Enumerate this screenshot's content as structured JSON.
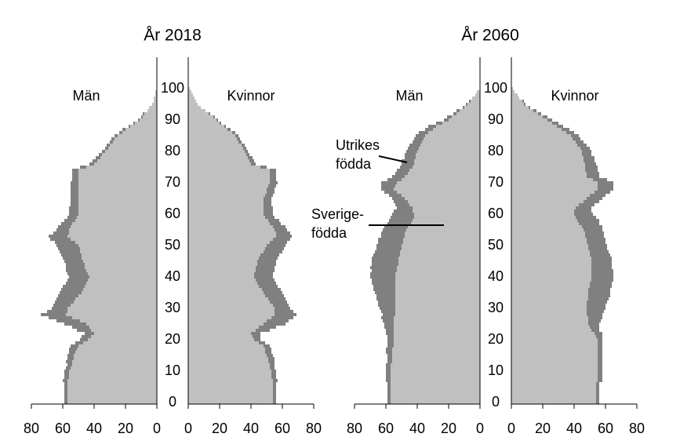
{
  "chart_data": [
    {
      "type": "pyramid",
      "title": "År 2018",
      "ages": [
        0,
        1,
        2,
        3,
        4,
        5,
        6,
        7,
        8,
        9,
        10,
        11,
        12,
        13,
        14,
        15,
        16,
        17,
        18,
        19,
        20,
        21,
        22,
        23,
        24,
        25,
        26,
        27,
        28,
        29,
        30,
        31,
        32,
        33,
        34,
        35,
        36,
        37,
        38,
        39,
        40,
        41,
        42,
        43,
        44,
        45,
        46,
        47,
        48,
        49,
        50,
        51,
        52,
        53,
        54,
        55,
        56,
        57,
        58,
        59,
        60,
        61,
        62,
        63,
        64,
        65,
        66,
        67,
        68,
        69,
        70,
        71,
        72,
        73,
        74,
        75,
        76,
        77,
        78,
        79,
        80,
        81,
        82,
        83,
        84,
        85,
        86,
        87,
        88,
        89,
        90,
        91,
        92,
        93,
        94,
        95,
        96,
        97,
        98,
        99,
        100
      ],
      "ylim": [
        -0.5,
        100.5
      ],
      "yticks": [
        0,
        10,
        20,
        30,
        40,
        50,
        60,
        70,
        80,
        90,
        100
      ],
      "xlim": [
        0,
        80
      ],
      "xticks": [
        0,
        20,
        40,
        60,
        80
      ],
      "men": {
        "label": "Män",
        "series": [
          {
            "color": "#c0c0c0",
            "values": [
              57,
              57,
              57,
              57,
              57,
              57,
              57,
              57,
              56,
              56,
              56,
              55,
              54,
              54,
              53,
              53,
              52,
              51,
              50,
              47,
              44,
              42,
              40,
              42,
              43,
              45,
              49,
              54,
              58,
              57,
              57,
              55,
              53,
              52,
              50,
              48,
              47,
              46,
              45,
              44,
              43,
              44,
              45,
              46,
              46,
              47,
              48,
              48,
              49,
              49,
              50,
              52,
              55,
              57,
              56,
              56,
              55,
              54,
              52,
              51,
              50,
              50,
              50,
              50,
              50,
              50,
              50,
              50,
              50,
              50,
              50,
              50,
              50,
              50,
              50,
              45,
              40,
              38,
              36,
              35,
              33,
              31,
              30,
              28,
              27,
              25,
              22,
              20,
              17,
              14,
              11,
              9,
              8,
              6,
              5,
              3,
              2,
              2,
              1,
              1,
              0
            ]
          },
          {
            "color": "#808080",
            "values": [
              2,
              2,
              2,
              2,
              2,
              2,
              2,
              3,
              3,
              3,
              3,
              3,
              3,
              4,
              4,
              4,
              4,
              5,
              5,
              5,
              5,
              6,
              6,
              9,
              11,
              14,
              15,
              15,
              16,
              13,
              10,
              11,
              12,
              12,
              13,
              14,
              14,
              14,
              13,
              13,
              13,
              13,
              13,
              12,
              12,
              12,
              12,
              13,
              13,
              14,
              14,
              13,
              13,
              12,
              10,
              8,
              8,
              7,
              7,
              6,
              6,
              6,
              6,
              5,
              5,
              5,
              5,
              5,
              5,
              5,
              5,
              4,
              4,
              4,
              4,
              4,
              3,
              3,
              3,
              2,
              2,
              2,
              2,
              2,
              2,
              2,
              2,
              2,
              1,
              1,
              1,
              1,
              1,
              0,
              0,
              0,
              0,
              0,
              0,
              0,
              0
            ]
          }
        ]
      },
      "women": {
        "label": "Kvinnor",
        "series": [
          {
            "color": "#c0c0c0",
            "values": [
              54,
              54,
              54,
              54,
              54,
              54,
              54,
              54,
              53,
              53,
              53,
              52,
              52,
              51,
              51,
              50,
              49,
              49,
              48,
              45,
              42,
              41,
              40,
              43,
              45,
              48,
              50,
              53,
              55,
              55,
              55,
              54,
              52,
              51,
              49,
              48,
              47,
              45,
              44,
              43,
              42,
              42,
              43,
              43,
              44,
              44,
              45,
              46,
              48,
              49,
              50,
              52,
              54,
              56,
              56,
              55,
              54,
              52,
              51,
              49,
              48,
              48,
              48,
              48,
              48,
              48,
              49,
              50,
              50,
              51,
              52,
              52,
              52,
              52,
              52,
              46,
              40,
              39,
              38,
              37,
              36,
              35,
              34,
              32,
              31,
              30,
              28,
              25,
              23,
              20,
              18,
              16,
              13,
              11,
              8,
              6,
              5,
              4,
              3,
              2,
              1
            ]
          },
          {
            "color": "#808080",
            "values": [
              2,
              2,
              2,
              2,
              2,
              2,
              2,
              3,
              3,
              3,
              3,
              3,
              3,
              4,
              4,
              4,
              4,
              4,
              4,
              4,
              4,
              5,
              6,
              9,
              11,
              14,
              14,
              14,
              14,
              12,
              10,
              10,
              11,
              11,
              12,
              12,
              12,
              12,
              12,
              12,
              12,
              12,
              12,
              12,
              12,
              12,
              12,
              12,
              12,
              12,
              12,
              11,
              11,
              10,
              9,
              8,
              8,
              7,
              7,
              6,
              6,
              6,
              6,
              5,
              5,
              5,
              5,
              5,
              5,
              5,
              5,
              4,
              4,
              4,
              4,
              4,
              3,
              3,
              3,
              2,
              2,
              2,
              2,
              2,
              2,
              2,
              2,
              2,
              1,
              1,
              1,
              1,
              1,
              0,
              0,
              0,
              0,
              0,
              0,
              0,
              0
            ]
          }
        ]
      }
    },
    {
      "type": "pyramid",
      "title": "År 2060",
      "ages": [
        0,
        1,
        2,
        3,
        4,
        5,
        6,
        7,
        8,
        9,
        10,
        11,
        12,
        13,
        14,
        15,
        16,
        17,
        18,
        19,
        20,
        21,
        22,
        23,
        24,
        25,
        26,
        27,
        28,
        29,
        30,
        31,
        32,
        33,
        34,
        35,
        36,
        37,
        38,
        39,
        40,
        41,
        42,
        43,
        44,
        45,
        46,
        47,
        48,
        49,
        50,
        51,
        52,
        53,
        54,
        55,
        56,
        57,
        58,
        59,
        60,
        61,
        62,
        63,
        64,
        65,
        66,
        67,
        68,
        69,
        70,
        71,
        72,
        73,
        74,
        75,
        76,
        77,
        78,
        79,
        80,
        81,
        82,
        83,
        84,
        85,
        86,
        87,
        88,
        89,
        90,
        91,
        92,
        93,
        94,
        95,
        96,
        97,
        98,
        99,
        100
      ],
      "ylim": [
        -0.5,
        100.5
      ],
      "yticks": [
        0,
        10,
        20,
        30,
        40,
        50,
        60,
        70,
        80,
        90,
        100
      ],
      "xlim": [
        0,
        80
      ],
      "xticks": [
        0,
        20,
        40,
        60,
        80
      ],
      "men": {
        "label": "Män",
        "series": [
          {
            "color": "#c0c0c0",
            "values": [
              57,
              57,
              57,
              57,
              57,
              57,
              57,
              57,
              57,
              57,
              57,
              57,
              57,
              56,
              56,
              56,
              56,
              56,
              55,
              55,
              55,
              55,
              55,
              55,
              55,
              55,
              55,
              55,
              54,
              54,
              54,
              54,
              54,
              54,
              54,
              54,
              54,
              54,
              54,
              54,
              54,
              54,
              53,
              53,
              52,
              52,
              52,
              51,
              51,
              50,
              50,
              49,
              49,
              48,
              48,
              47,
              46,
              44,
              43,
              42,
              42,
              43,
              43,
              45,
              46,
              48,
              50,
              53,
              55,
              54,
              53,
              50,
              48,
              46,
              45,
              43,
              42,
              42,
              41,
              41,
              40,
              39,
              38,
              37,
              36,
              35,
              33,
              30,
              28,
              24,
              20,
              18,
              15,
              13,
              10,
              8,
              6,
              5,
              3,
              2,
              0
            ]
          },
          {
            "color": "#808080",
            "values": [
              2,
              2,
              2,
              2,
              2,
              2,
              2,
              3,
              3,
              3,
              3,
              3,
              3,
              3,
              3,
              3,
              4,
              4,
              4,
              4,
              4,
              4,
              5,
              5,
              6,
              6,
              7,
              8,
              8,
              9,
              10,
              11,
              11,
              12,
              12,
              13,
              14,
              14,
              15,
              15,
              16,
              16,
              16,
              17,
              17,
              17,
              17,
              17,
              16,
              16,
              16,
              16,
              16,
              15,
              15,
              15,
              15,
              15,
              15,
              15,
              14,
              12,
              10,
              9,
              9,
              8,
              8,
              8,
              8,
              9,
              10,
              9,
              8,
              8,
              8,
              8,
              8,
              8,
              7,
              7,
              7,
              7,
              7,
              6,
              6,
              6,
              6,
              5,
              5,
              4,
              3,
              3,
              2,
              2,
              1,
              1,
              1,
              0,
              0,
              0,
              0
            ]
          }
        ]
      },
      "women": {
        "label": "Kvinnor",
        "series": [
          {
            "color": "#c0c0c0",
            "values": [
              54,
              54,
              54,
              54,
              54,
              54,
              54,
              55,
              55,
              55,
              55,
              55,
              55,
              55,
              55,
              55,
              55,
              55,
              55,
              55,
              55,
              54,
              53,
              51,
              50,
              49,
              49,
              49,
              48,
              48,
              48,
              48,
              48,
              49,
              49,
              49,
              49,
              50,
              50,
              51,
              51,
              51,
              51,
              51,
              51,
              51,
              51,
              50,
              50,
              49,
              49,
              48,
              48,
              47,
              47,
              46,
              45,
              43,
              42,
              41,
              40,
              40,
              41,
              43,
              46,
              48,
              50,
              53,
              55,
              55,
              55,
              52,
              48,
              48,
              47,
              47,
              47,
              46,
              46,
              45,
              45,
              44,
              42,
              41,
              39,
              38,
              35,
              32,
              29,
              26,
              23,
              20,
              17,
              14,
              11,
              8,
              7,
              5,
              4,
              2,
              1
            ]
          },
          {
            "color": "#808080",
            "values": [
              2,
              2,
              2,
              2,
              2,
              2,
              2,
              3,
              3,
              3,
              3,
              3,
              3,
              3,
              3,
              3,
              3,
              3,
              3,
              3,
              3,
              4,
              5,
              5,
              6,
              7,
              8,
              9,
              10,
              11,
              12,
              12,
              13,
              13,
              14,
              14,
              14,
              14,
              14,
              14,
              14,
              14,
              14,
              13,
              13,
              13,
              13,
              13,
              12,
              12,
              12,
              12,
              12,
              12,
              12,
              12,
              13,
              13,
              14,
              13,
              12,
              11,
              10,
              10,
              10,
              10,
              10,
              10,
              10,
              10,
              10,
              9,
              8,
              8,
              8,
              8,
              7,
              7,
              7,
              6,
              6,
              6,
              6,
              5,
              5,
              5,
              5,
              5,
              4,
              4,
              3,
              3,
              2,
              2,
              1,
              1,
              1,
              0,
              0,
              0,
              0
            ]
          }
        ]
      },
      "annotations": [
        {
          "lines": [
            "Utrikes",
            "födda"
          ]
        },
        {
          "lines": [
            "Sverige-",
            "födda"
          ]
        }
      ]
    }
  ]
}
